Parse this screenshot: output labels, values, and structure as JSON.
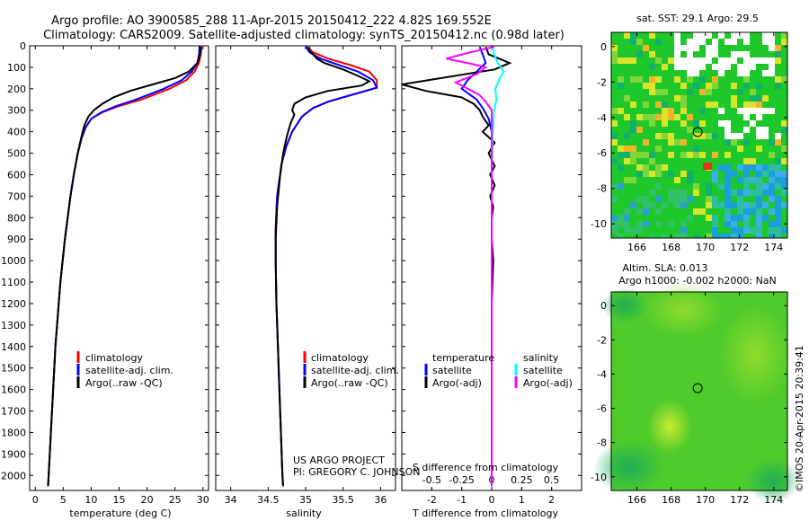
{
  "title": {
    "line1": "Argo profile: AO 3900585_288 11-Apr-2015 20150412_222 4.82S 169.552E",
    "line2": "Climatology: CARS2009. Satellite-adjusted climatology: synTS_20150412.nc (0.98d later)"
  },
  "chart_data": [
    {
      "type": "line",
      "name": "temperature-profile",
      "xlabel": "temperature (deg C)",
      "ylabel": "",
      "xlim": [
        -1,
        31
      ],
      "ylim": [
        2070,
        0
      ],
      "xticks": [
        0,
        5,
        10,
        15,
        20,
        25,
        30
      ],
      "yticks": [
        0,
        100,
        200,
        300,
        400,
        500,
        600,
        700,
        800,
        900,
        1000,
        1100,
        1200,
        1300,
        1400,
        1500,
        1600,
        1700,
        1800,
        1900,
        2000
      ],
      "legend": [
        "climatology",
        "satellite-adj. clim.",
        "Argo(..raw -QC)"
      ],
      "series": [
        {
          "name": "climatology",
          "color": "#ff0000",
          "points": [
            [
              29.8,
              0
            ],
            [
              29.6,
              40
            ],
            [
              29.3,
              80
            ],
            [
              28.5,
              120
            ],
            [
              27.0,
              160
            ],
            [
              24.0,
              200
            ],
            [
              19.0,
              250
            ],
            [
              15.0,
              280
            ],
            [
              12.0,
              310
            ],
            [
              10.0,
              340
            ],
            [
              9.0,
              380
            ],
            [
              8.3,
              430
            ],
            [
              7.6,
              500
            ],
            [
              6.9,
              600
            ],
            [
              6.3,
              700
            ],
            [
              5.8,
              800
            ],
            [
              5.3,
              900
            ],
            [
              4.9,
              1000
            ],
            [
              4.5,
              1100
            ],
            [
              4.2,
              1200
            ],
            [
              3.9,
              1300
            ],
            [
              3.6,
              1400
            ],
            [
              3.4,
              1500
            ],
            [
              3.2,
              1600
            ],
            [
              3.0,
              1700
            ],
            [
              2.8,
              1800
            ],
            [
              2.6,
              1900
            ],
            [
              2.4,
              2000
            ],
            [
              2.3,
              2050
            ]
          ]
        },
        {
          "name": "satellite-adj. clim.",
          "color": "#0000ff",
          "points": [
            [
              29.4,
              0
            ],
            [
              29.3,
              40
            ],
            [
              29.0,
              80
            ],
            [
              28.0,
              120
            ],
            [
              26.2,
              160
            ],
            [
              23.0,
              200
            ],
            [
              18.0,
              250
            ],
            [
              14.5,
              280
            ],
            [
              11.8,
              310
            ],
            [
              10.0,
              340
            ],
            [
              9.0,
              380
            ],
            [
              8.3,
              430
            ],
            [
              7.6,
              500
            ],
            [
              6.9,
              600
            ],
            [
              6.3,
              700
            ],
            [
              5.8,
              800
            ],
            [
              5.3,
              900
            ],
            [
              4.9,
              1000
            ],
            [
              4.5,
              1100
            ],
            [
              4.2,
              1200
            ],
            [
              3.9,
              1300
            ],
            [
              3.6,
              1400
            ],
            [
              3.4,
              1500
            ],
            [
              3.2,
              1600
            ],
            [
              3.0,
              1700
            ],
            [
              2.8,
              1800
            ],
            [
              2.6,
              1900
            ],
            [
              2.4,
              2000
            ],
            [
              2.3,
              2050
            ]
          ]
        },
        {
          "name": "Argo(..raw -QC)",
          "color": "#000000",
          "points": [
            [
              29.6,
              5
            ],
            [
              29.5,
              40
            ],
            [
              29.0,
              80
            ],
            [
              27.5,
              120
            ],
            [
              25.0,
              150
            ],
            [
              21.0,
              180
            ],
            [
              17.0,
              210
            ],
            [
              14.0,
              240
            ],
            [
              12.0,
              270
            ],
            [
              10.5,
              300
            ],
            [
              9.5,
              330
            ],
            [
              8.8,
              370
            ],
            [
              8.2,
              430
            ],
            [
              7.6,
              500
            ],
            [
              6.9,
              600
            ],
            [
              6.3,
              700
            ],
            [
              5.8,
              800
            ],
            [
              5.3,
              900
            ],
            [
              4.9,
              1000
            ],
            [
              4.5,
              1100
            ],
            [
              4.2,
              1200
            ],
            [
              3.9,
              1300
            ],
            [
              3.6,
              1400
            ],
            [
              3.4,
              1500
            ],
            [
              3.2,
              1600
            ],
            [
              3.0,
              1700
            ],
            [
              2.8,
              1800
            ],
            [
              2.6,
              1900
            ],
            [
              2.4,
              2000
            ],
            [
              2.3,
              2050
            ]
          ]
        }
      ]
    },
    {
      "type": "line",
      "name": "salinity-profile",
      "xlabel": "salinity",
      "xlim": [
        33.8,
        36.2
      ],
      "ylim": [
        2070,
        0
      ],
      "xticks": [
        34,
        34.5,
        35,
        35.5,
        36
      ],
      "legend": [
        "climatology",
        "satellite-adj. clim.",
        "Argo(..raw -QC)"
      ],
      "series": [
        {
          "name": "climatology",
          "color": "#ff0000",
          "points": [
            [
              35.0,
              0
            ],
            [
              35.1,
              30
            ],
            [
              35.3,
              60
            ],
            [
              35.6,
              90
            ],
            [
              35.85,
              120
            ],
            [
              35.95,
              160
            ],
            [
              35.95,
              195
            ],
            [
              35.6,
              230
            ],
            [
              35.3,
              260
            ],
            [
              35.1,
              290
            ],
            [
              34.95,
              330
            ],
            [
              34.82,
              400
            ],
            [
              34.74,
              470
            ],
            [
              34.68,
              550
            ],
            [
              34.62,
              700
            ],
            [
              34.6,
              850
            ],
            [
              34.6,
              1000
            ],
            [
              34.61,
              1200
            ],
            [
              34.63,
              1400
            ],
            [
              34.65,
              1600
            ],
            [
              34.67,
              1800
            ],
            [
              34.69,
              2000
            ],
            [
              34.7,
              2050
            ]
          ]
        },
        {
          "name": "satellite-adj. clim.",
          "color": "#0000ff",
          "points": [
            [
              35.0,
              0
            ],
            [
              35.05,
              30
            ],
            [
              35.2,
              60
            ],
            [
              35.45,
              90
            ],
            [
              35.7,
              120
            ],
            [
              35.9,
              160
            ],
            [
              35.95,
              195
            ],
            [
              35.6,
              230
            ],
            [
              35.3,
              260
            ],
            [
              35.1,
              290
            ],
            [
              34.95,
              330
            ],
            [
              34.82,
              400
            ],
            [
              34.74,
              470
            ],
            [
              34.68,
              550
            ],
            [
              34.62,
              700
            ],
            [
              34.6,
              850
            ],
            [
              34.6,
              1000
            ],
            [
              34.61,
              1200
            ],
            [
              34.63,
              1400
            ],
            [
              34.65,
              1600
            ],
            [
              34.67,
              1800
            ],
            [
              34.69,
              2000
            ],
            [
              34.7,
              2050
            ]
          ]
        },
        {
          "name": "Argo(..raw -QC)",
          "color": "#000000",
          "points": [
            [
              35.05,
              5
            ],
            [
              35.05,
              20
            ],
            [
              35.1,
              40
            ],
            [
              35.15,
              60
            ],
            [
              35.25,
              80
            ],
            [
              35.5,
              110
            ],
            [
              35.7,
              140
            ],
            [
              35.85,
              165
            ],
            [
              35.75,
              185
            ],
            [
              35.3,
              210
            ],
            [
              35.0,
              240
            ],
            [
              34.85,
              270
            ],
            [
              34.82,
              300
            ],
            [
              34.85,
              320
            ],
            [
              34.8,
              360
            ],
            [
              34.75,
              420
            ],
            [
              34.7,
              500
            ],
            [
              34.66,
              600
            ],
            [
              34.62,
              750
            ],
            [
              34.6,
              900
            ],
            [
              34.6,
              1000
            ],
            [
              34.61,
              1200
            ],
            [
              34.63,
              1400
            ],
            [
              34.65,
              1600
            ],
            [
              34.67,
              1800
            ],
            [
              34.69,
              2000
            ],
            [
              34.7,
              2050
            ]
          ]
        }
      ]
    },
    {
      "type": "line",
      "name": "difference-profile",
      "xlabel": "T difference from climatology",
      "xlabel2": "S difference from climatology",
      "xlim": [
        -3,
        3
      ],
      "xlim_s": [
        -0.75,
        0.75
      ],
      "ylim": [
        2070,
        0
      ],
      "xticks": [
        -2,
        -1,
        0,
        1,
        2
      ],
      "xticks_s_labels": [
        "-0.5",
        "-0.25",
        "0",
        "0.25",
        "0.5"
      ],
      "xticks_s_values": [
        -0.5,
        -0.25,
        0,
        0.25,
        0.5
      ],
      "legend_temperature_heading": "temperature",
      "legend_salinity_heading": "salinity",
      "legend": [
        "satellite",
        "Argo(-adj)",
        "satellite",
        "Argo(-adj)"
      ],
      "series": [
        {
          "name": "T satellite",
          "color": "#0000ff",
          "points": [
            [
              -0.4,
              5
            ],
            [
              -0.3,
              40
            ],
            [
              -0.2,
              80
            ],
            [
              -0.5,
              120
            ],
            [
              -0.8,
              160
            ],
            [
              -1.0,
              200
            ],
            [
              -0.5,
              250
            ],
            [
              -0.3,
              290
            ],
            [
              -0.1,
              340
            ],
            [
              0,
              400
            ],
            [
              0,
              600
            ],
            [
              0,
              1000
            ],
            [
              0,
              1500
            ],
            [
              0,
              2050
            ]
          ]
        },
        {
          "name": "T Argo(-adj)",
          "color": "#000000",
          "points": [
            [
              -0.2,
              5
            ],
            [
              -0.1,
              40
            ],
            [
              0.6,
              80
            ],
            [
              0.1,
              110
            ],
            [
              -3.0,
              180
            ],
            [
              -2.2,
              210
            ],
            [
              -1.0,
              240
            ],
            [
              -0.6,
              270
            ],
            [
              -0.4,
              300
            ],
            [
              -0.3,
              330
            ],
            [
              -0.1,
              370
            ],
            [
              -0.3,
              400
            ],
            [
              0.1,
              450
            ],
            [
              -0.1,
              500
            ],
            [
              0.1,
              560
            ],
            [
              -0.05,
              600
            ],
            [
              0.1,
              650
            ],
            [
              -0.05,
              700
            ],
            [
              0.05,
              750
            ],
            [
              0,
              800
            ],
            [
              0,
              900
            ],
            [
              0.05,
              1000
            ],
            [
              0,
              1200
            ],
            [
              0,
              1500
            ],
            [
              0,
              2050
            ]
          ]
        },
        {
          "name": "S satellite",
          "color": "#00ffff",
          "points": [
            [
              0,
              5
            ],
            [
              0.02,
              40
            ],
            [
              0.05,
              80
            ],
            [
              0.1,
              120
            ],
            [
              0.06,
              160
            ],
            [
              0.03,
              200
            ],
            [
              0.04,
              250
            ],
            [
              0.02,
              300
            ],
            [
              0.01,
              400
            ],
            [
              0,
              600
            ],
            [
              0,
              1000
            ],
            [
              0,
              1500
            ],
            [
              0,
              2050
            ]
          ]
        },
        {
          "name": "S Argo(-adj)",
          "color": "#ff00ff",
          "points": [
            [
              0.02,
              5
            ],
            [
              -0.1,
              20
            ],
            [
              -0.25,
              40
            ],
            [
              -0.38,
              60
            ],
            [
              -0.2,
              80
            ],
            [
              -0.05,
              100
            ],
            [
              -0.12,
              130
            ],
            [
              -0.3,
              170
            ],
            [
              -0.2,
              200
            ],
            [
              -0.1,
              230
            ],
            [
              -0.05,
              260
            ],
            [
              0,
              300
            ],
            [
              0,
              400
            ],
            [
              0,
              600
            ],
            [
              0,
              1000
            ],
            [
              0,
              1500
            ],
            [
              0,
              2050
            ]
          ]
        }
      ]
    }
  ],
  "sst_map": {
    "title": "sat. SST: 29.1 Argo: 29.5",
    "xticks": [
      166,
      168,
      170,
      172,
      174
    ],
    "yticks": [
      0,
      -2,
      -4,
      -6,
      -8,
      -10
    ],
    "xlim": [
      164.5,
      174.8
    ],
    "ylim": [
      -10.8,
      0.8
    ],
    "argo_lon": 169.552,
    "argo_lat": -4.82
  },
  "sla_map": {
    "title_line1": "Altim. SLA: 0.013",
    "title_line2": "Argo h1000: -0.002 h2000: NaN",
    "xticks": [
      166,
      168,
      170,
      172,
      174
    ],
    "yticks": [
      0,
      -2,
      -4,
      -6,
      -8,
      -10
    ],
    "xlim": [
      164.5,
      174.8
    ],
    "ylim": [
      -10.8,
      0.8
    ],
    "argo_lon": 169.552,
    "argo_lat": -4.82
  },
  "credit": {
    "project": "US ARGO PROJECT",
    "pi": "PI: GREGORY C. JOHNSON",
    "imos": "©IMOS 20-Apr-2015 20:39:41"
  },
  "colors": {
    "climatology": "#ff0000",
    "satellite_adj": "#0000ff",
    "argo": "#000000",
    "sat_salinity": "#00ffff",
    "argo_salinity": "#ff00ff"
  }
}
